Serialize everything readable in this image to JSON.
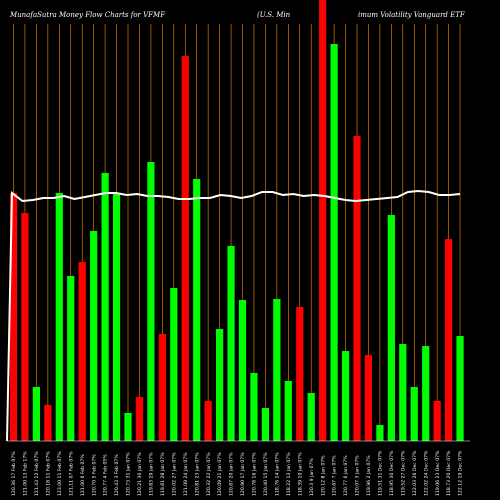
{
  "title_left": "MunafaSutra  Money Flow  Charts for VFMF",
  "title_mid": "(U.S. Min",
  "title_right": "imum Volatility Vanguard ETF",
  "colors": {
    "background": "#000000",
    "up": "#00ff00",
    "down": "#ff0000",
    "line": "#ffffff",
    "grid": "#ff8c00"
  },
  "chart_data": {
    "type": "bar",
    "title": "MunafaSutra  Money Flow  Charts for VFMF (U.S. Minimum Volatility Vanguard ETF",
    "xlabel": "",
    "ylabel": "",
    "grid": "vertical",
    "categories": [
      "120.36 17 Feb 07%",
      "121.00 13 Feb 17%",
      "121.43 12 Feb 07%",
      "120.18 11 Feb 07%",
      "123.00 11 Feb 07%",
      "121.11 07 Feb 07%",
      "121.00 6 Feb 07%",
      "120.70 5 Feb 07%",
      "120.77 4 Feb 05%",
      "120.43 3 Feb 07%",
      "120.73 31 Jan 07%",
      "120.21 30 Jan 07%",
      "119.83 29 Jan 07%",
      "119.81 28 Jan 07%",
      "120.02 27 Jan 07%",
      "121.09 24 Jan 07%",
      "120.81 23 Jan 07%",
      "120.32 22 Jan 07%",
      "120.09 21 Jan 07%",
      "120.87 20 Jan 07%",
      "120.90 17 Jan 07%",
      "120.78 16 Jan 07%",
      "120.40 15 Jan 07%",
      "118.76 14 Jan 07%",
      "118.22 13 Jan 07%",
      "118.39 10 Jan 07%",
      "120.3 9 Jan 07%",
      "120.12 8 Jan 07%",
      "120.67 7 Jan 07%",
      "120.77 6 Jan 07%",
      "120.07 3 Jan 07%",
      "119.96 2 Jan 07%",
      "119.51 31 Dec 07%",
      "118.95 30 Dec 07%",
      "119.52 27 Dec 07%",
      "122.03 26 Dec 07%",
      "122.02 24 Dec 07%",
      "119.06 23 Dec 07%",
      "118.73 20 Dec 07%",
      "122.12 19 Dec 07%"
    ],
    "series": [
      {
        "direction": [
          "down",
          "down",
          "up",
          "down",
          "up",
          "up",
          "down",
          "up",
          "up",
          "up",
          "up",
          "down",
          "up",
          "down",
          "up",
          "down",
          "up",
          "down",
          "up",
          "up",
          "up",
          "up",
          "up",
          "up",
          "up",
          "down",
          "up",
          "down",
          "up",
          "up",
          "down",
          "down",
          "up",
          "up",
          "up",
          "up",
          "up",
          "down",
          "down",
          "up"
        ],
        "values": [
          248,
          228,
          54,
          36,
          248,
          165,
          179,
          210,
          268,
          248,
          28,
          44,
          279,
          107,
          153,
          385,
          262,
          40,
          112,
          195,
          141,
          68,
          33,
          142,
          60,
          134,
          48,
          600,
          397,
          90,
          305,
          86,
          16,
          226,
          97,
          54,
          95,
          40,
          202,
          105
        ]
      }
    ],
    "money_flow_line": [
      248,
      240,
      241,
      243,
      243,
      245,
      242,
      244,
      246,
      248,
      248,
      246,
      247,
      245,
      245,
      244,
      242,
      242,
      243,
      243,
      246,
      245,
      243,
      245,
      249,
      249,
      246,
      247,
      245,
      246,
      245,
      243,
      241,
      240,
      241,
      242,
      243,
      244,
      249,
      250,
      249,
      246,
      246,
      247
    ]
  }
}
